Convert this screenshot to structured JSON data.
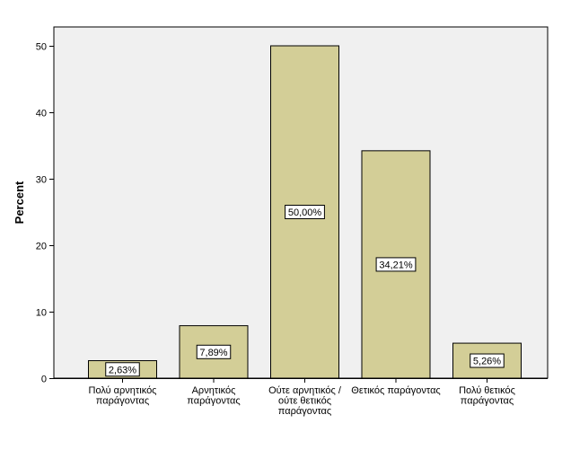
{
  "chart_data": {
    "type": "bar",
    "title": "",
    "xlabel": "",
    "ylabel": "Percent",
    "ylim": [
      0,
      50
    ],
    "yticks": [
      0,
      10,
      20,
      30,
      40,
      50
    ],
    "grid": false,
    "categories": [
      [
        "Πολύ αρνητικός",
        "παράγοντας"
      ],
      [
        "Αρνητικός",
        "παράγοντας"
      ],
      [
        "Ούτε αρνητικός /",
        "ούτε θετικός",
        "παράγοντας"
      ],
      [
        "Θετικός παράγοντας"
      ],
      [
        "Πολύ θετικός",
        "παράγοντας"
      ]
    ],
    "values": [
      2.63,
      7.89,
      50.0,
      34.21,
      5.26
    ],
    "data_labels": [
      "2,63%",
      "7,89%",
      "50,00%",
      "34,21%",
      "5,26%"
    ],
    "colors": {
      "plot_background": "#f0f0f0",
      "bar_fill": "#d3ce97",
      "bar_stroke": "#000000"
    }
  }
}
